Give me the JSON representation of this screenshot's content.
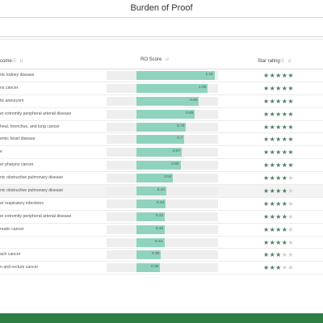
{
  "page_title": "Burden of Proof",
  "table": {
    "headers": {
      "outcome": "come",
      "score": "RO Score",
      "star": "Star rating",
      "info_icon": "ⓘ",
      "sort_icon": "↓↑"
    },
    "colors": {
      "bar": "#8fd3be",
      "star_on": "#4f7f66",
      "star_off": "#cfcfcf"
    },
    "score_axis_max": 1.2,
    "rows": [
      {
        "outcome": "nic kidney disease",
        "score": 1.15,
        "score_label": "1.15",
        "stars": 5
      },
      {
        "outcome": "nx cancer",
        "score": 1.05,
        "score_label": "1.05",
        "stars": 5
      },
      {
        "outcome": "tic aneurysm",
        "score": 0.92,
        "score_label": "0.92",
        "stars": 5
      },
      {
        "outcome": "er extremity peripheral arterial disease",
        "score": 0.86,
        "score_label": "0.86",
        "stars": 5
      },
      {
        "outcome": "heal, bronchus, and lung cancer",
        "score": 0.73,
        "score_label": "0.73",
        "stars": 5
      },
      {
        "outcome": "emic heart disease",
        "score": 0.7,
        "score_label": "0.7",
        "stars": 5
      },
      {
        "outcome": "e",
        "score": 0.67,
        "score_label": "0.67",
        "stars": 5
      },
      {
        "outcome": "er pharynx cancer",
        "score": 0.65,
        "score_label": "0.65",
        "stars": 5
      },
      {
        "outcome": "nic obstructive pulmonary disease",
        "score": 0.54,
        "score_label": "0.54",
        "stars": 4
      },
      {
        "outcome": "nic obstructive pulmonary disease",
        "score": 0.44,
        "score_label": "0.44",
        "stars": 4
      },
      {
        "outcome": "er respiratory infections",
        "score": 0.43,
        "score_label": "0.43",
        "stars": 4
      },
      {
        "outcome": "er extremity peripheral arterial disease",
        "score": 0.42,
        "score_label": "0.42",
        "stars": 4
      },
      {
        "outcome": "reatic cancer",
        "score": 0.42,
        "score_label": "0.42",
        "stars": 4
      },
      {
        "outcome": "",
        "score": 0.41,
        "score_label": "0.41",
        "stars": 4
      },
      {
        "outcome": "ach cancer",
        "score": 0.36,
        "score_label": "0.36",
        "stars": 3
      },
      {
        "outcome": "n and rectum cancer",
        "score": 0.35,
        "score_label": "0.35",
        "stars": 3
      }
    ]
  }
}
